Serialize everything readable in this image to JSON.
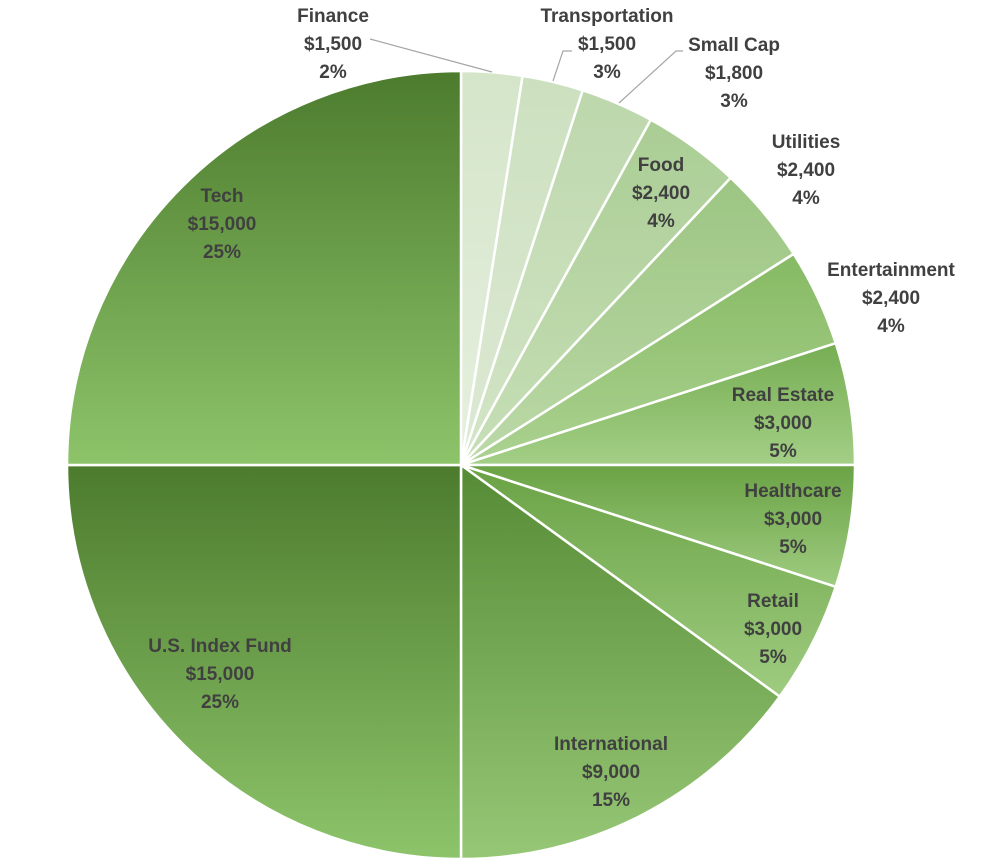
{
  "chart_data": {
    "type": "pie",
    "title": "",
    "start_angle_deg": 0,
    "direction": "clockwise",
    "slices": [
      {
        "label": "Finance",
        "value": 1500,
        "value_label": "$1,500",
        "percent_label": "2%",
        "color_top": "#d4e5c9",
        "color_bottom": "#e6efdf"
      },
      {
        "label": "Transportation",
        "value": 1500,
        "value_label": "$1,500",
        "percent_label": "3%",
        "color_top": "#cce0bf",
        "color_bottom": "#dde9d4"
      },
      {
        "label": "Small Cap",
        "value": 1800,
        "value_label": "$1,800",
        "percent_label": "3%",
        "color_top": "#bdd7ac",
        "color_bottom": "#d3e5c7"
      },
      {
        "label": "Food",
        "value": 2400,
        "value_label": "$2,400",
        "percent_label": "4%",
        "color_top": "#aacd94",
        "color_bottom": "#c8dfb8"
      },
      {
        "label": "Utilities",
        "value": 2400,
        "value_label": "$2,400",
        "percent_label": "4%",
        "color_top": "#9cc582",
        "color_bottom": "#bcd9a8"
      },
      {
        "label": "Entertainment",
        "value": 2400,
        "value_label": "$2,400",
        "percent_label": "4%",
        "color_top": "#86ba63",
        "color_bottom": "#acd292"
      },
      {
        "label": "Real Estate",
        "value": 3000,
        "value_label": "$3,000",
        "percent_label": "5%",
        "color_top": "#76ad52",
        "color_bottom": "#a3cf86"
      },
      {
        "label": "Healthcare",
        "value": 3000,
        "value_label": "$3,000",
        "percent_label": "5%",
        "color_top": "#6aa245",
        "color_bottom": "#9fcc80"
      },
      {
        "label": "Retail",
        "value": 3000,
        "value_label": "$3,000",
        "percent_label": "5%",
        "color_top": "#6aa245",
        "color_bottom": "#9fcc80"
      },
      {
        "label": "International",
        "value": 9000,
        "value_label": "$9,000",
        "percent_label": "15%",
        "color_top": "#568b35",
        "color_bottom": "#96c776"
      },
      {
        "label": "U.S. Index Fund",
        "value": 15000,
        "value_label": "$15,000",
        "percent_label": "25%",
        "color_top": "#4c7b2d",
        "color_bottom": "#8dc46a"
      },
      {
        "label": "Tech",
        "value": 15000,
        "value_label": "$15,000",
        "percent_label": "25%",
        "color_top": "#4c7b2d",
        "color_bottom": "#8dc46a"
      }
    ],
    "label_color": "#404040",
    "leader_line_color": "#a6a6a6"
  }
}
